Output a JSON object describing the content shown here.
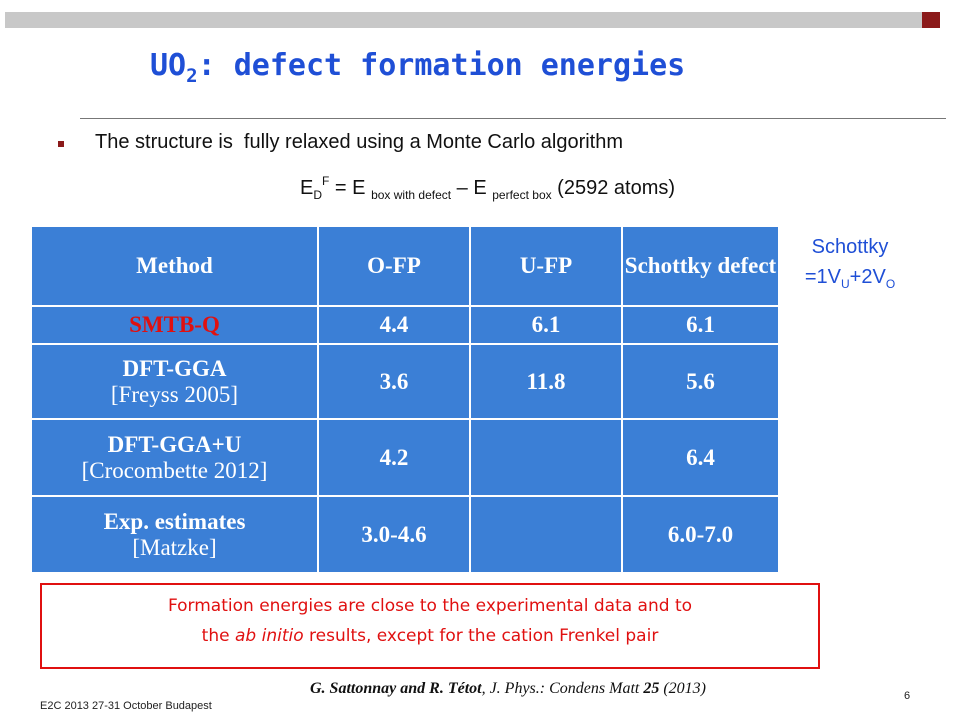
{
  "title": {
    "main": "UO",
    "sub": "2",
    "rest": ": defect formation energies"
  },
  "bullet": "The structure is  fully relaxed using a Monte Carlo algorithm",
  "formula": {
    "e": "E",
    "d": "D",
    "f": "F",
    "eq": " = E ",
    "sub1": "box with defect",
    "minus": " – E ",
    "sub2": "perfect box",
    "tail": " (2592 atoms)"
  },
  "table": {
    "header": [
      "Method",
      "O-FP",
      "U-FP",
      "Schottky defect"
    ],
    "rows": [
      {
        "method": "SMTB-Q",
        "values": [
          "4.4",
          "6.1",
          "6.1"
        ]
      },
      {
        "method": "DFT-GGA",
        "ref": "[Freyss 2005]",
        "values": [
          "3.6",
          "11.8",
          "5.6"
        ]
      },
      {
        "method": "DFT-GGA+U",
        "ref": "[Crocombette 2012]",
        "values": [
          "4.2",
          null,
          "6.4"
        ]
      },
      {
        "method": "Exp. estimates",
        "ref": "[Matzke]",
        "values": [
          "3.0-4.6",
          null,
          "6.0-7.0"
        ]
      }
    ]
  },
  "schottky": {
    "label": "Schottky",
    "a": "=1V",
    "asub": "U",
    "b": "+2V",
    "bsub": "O"
  },
  "note": {
    "line1": "Formation energies are close to the experimental data and to",
    "pre": "the ",
    "italic": "ab initio",
    "post": " results, except for the cation Frenkel pair"
  },
  "citation": {
    "authors": "G. Sattonnay and R. Tétot",
    "journal": ", J. Phys.: Condens Matt ",
    "volume": "25",
    "year": " (2013)"
  },
  "footer": "E2C 2013 27-31 October Budapest",
  "page": "6"
}
